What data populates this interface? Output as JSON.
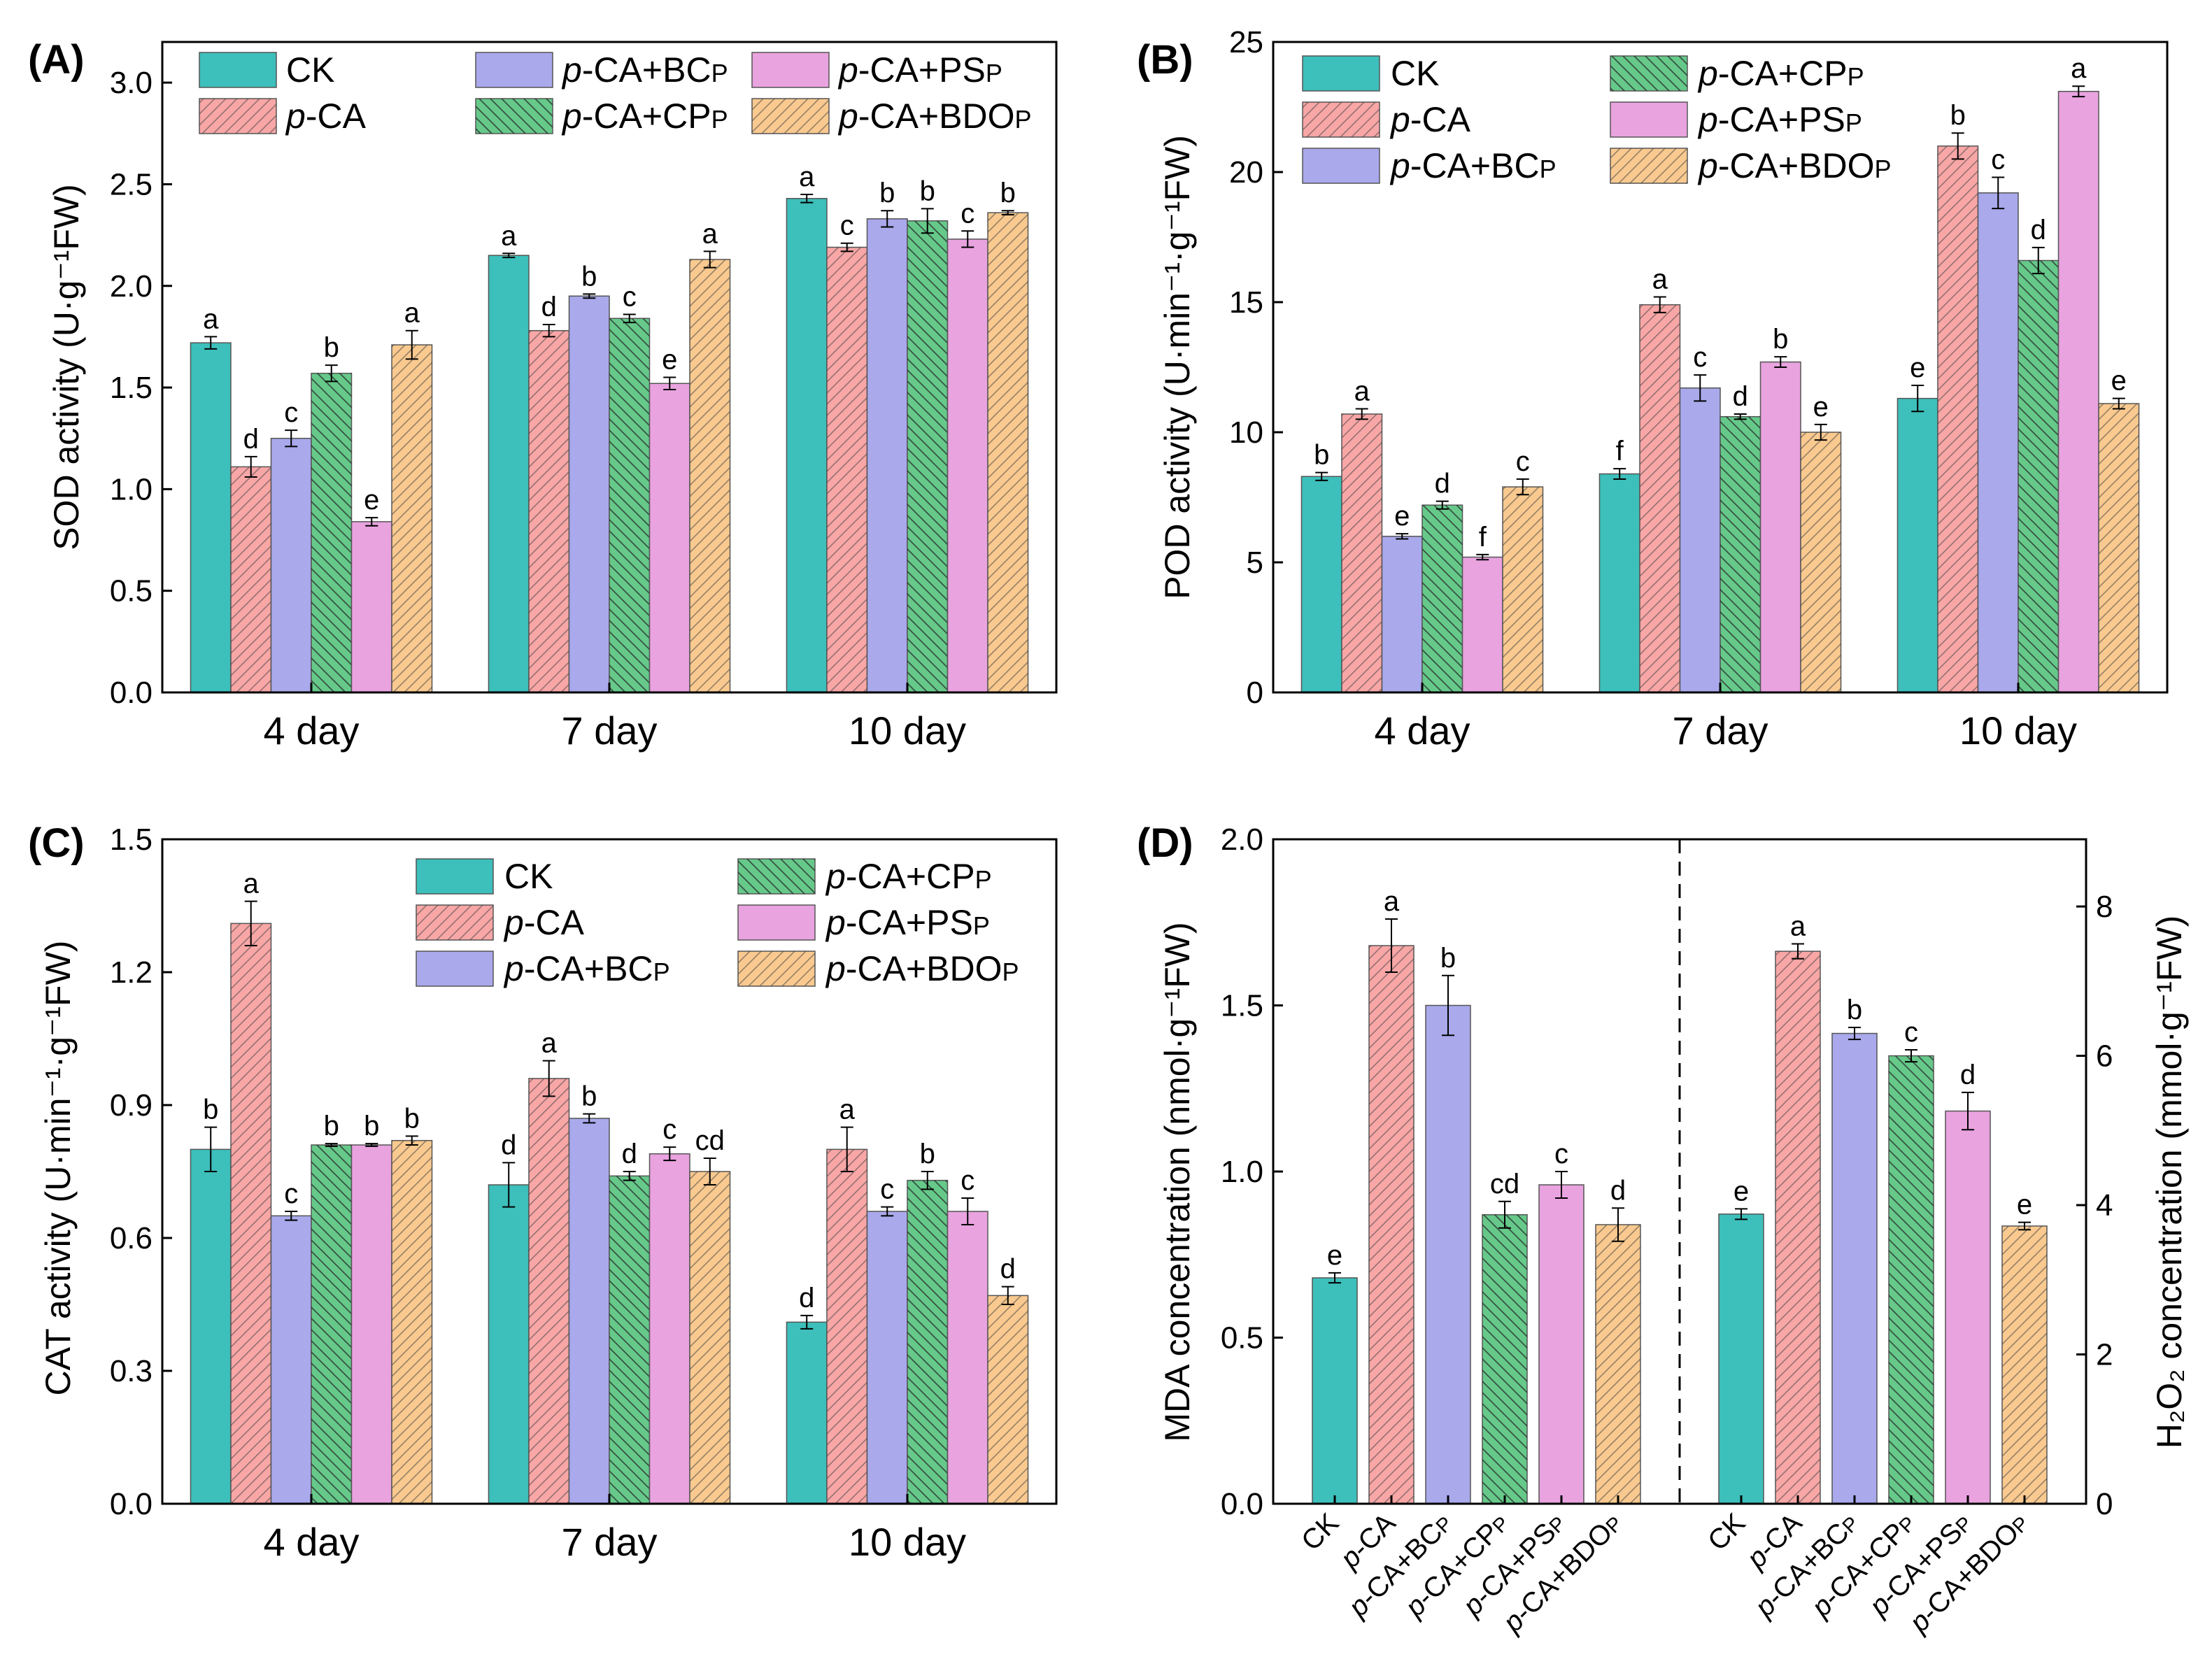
{
  "series": [
    {
      "key": "CK",
      "label": "CK",
      "color": "#3dbfbb",
      "hatch": "none"
    },
    {
      "key": "pCA",
      "label": "p-CA",
      "color": "#f8a6a6",
      "hatch": "fwd"
    },
    {
      "key": "BC",
      "label": "p-CA+BCP",
      "color": "#a9a9ec",
      "hatch": "none"
    },
    {
      "key": "CP",
      "label": "p-CA+CPP",
      "color": "#66c98a",
      "hatch": "back"
    },
    {
      "key": "PS",
      "label": "p-CA+PSP",
      "color": "#e9a3df",
      "hatch": "none"
    },
    {
      "key": "BDO",
      "label": "p-CA+BDOP",
      "color": "#f9c98f",
      "hatch": "fwd"
    }
  ],
  "chart_data": [
    {
      "id": "A",
      "type": "bar",
      "panel_label": "(A)",
      "ylabel": "SOD activity (U·g⁻¹FW)",
      "ylim": [
        0,
        3.2
      ],
      "yticks": [
        "0.0",
        "0.5",
        "1.0",
        "1.5",
        "2.0",
        "2.5",
        "3.0"
      ],
      "categories": [
        "4 day",
        "7 day",
        "10 day"
      ],
      "legend_position": "top",
      "values": {
        "CK": [
          1.72,
          2.15,
          2.43
        ],
        "pCA": [
          1.11,
          1.78,
          2.19
        ],
        "BC": [
          1.25,
          1.95,
          2.33
        ],
        "CP": [
          1.57,
          1.84,
          2.32
        ],
        "PS": [
          0.84,
          1.52,
          2.23
        ],
        "BDO": [
          1.71,
          2.13,
          2.36
        ]
      },
      "errors": {
        "CK": [
          0.03,
          0.01,
          0.02
        ],
        "pCA": [
          0.05,
          0.03,
          0.02
        ],
        "BC": [
          0.04,
          0.01,
          0.04
        ],
        "CP": [
          0.04,
          0.02,
          0.06
        ],
        "PS": [
          0.02,
          0.03,
          0.04
        ],
        "BDO": [
          0.07,
          0.04,
          0.01
        ]
      },
      "letters": {
        "CK": [
          "a",
          "a",
          "a"
        ],
        "pCA": [
          "d",
          "d",
          "c"
        ],
        "BC": [
          "c",
          "b",
          "b"
        ],
        "CP": [
          "b",
          "c",
          "b"
        ],
        "PS": [
          "e",
          "e",
          "c"
        ],
        "BDO": [
          "a",
          "a",
          "b"
        ]
      }
    },
    {
      "id": "B",
      "type": "bar",
      "panel_label": "(B)",
      "ylabel": "POD activity (U·min⁻¹·g⁻¹FW)",
      "ylim": [
        0,
        25
      ],
      "yticks": [
        "0",
        "5",
        "10",
        "15",
        "20",
        "25"
      ],
      "categories": [
        "4 day",
        "7 day",
        "10 day"
      ],
      "legend_position": "top",
      "values": {
        "CK": [
          8.3,
          8.4,
          11.3
        ],
        "pCA": [
          10.7,
          14.9,
          21.0
        ],
        "BC": [
          6.0,
          11.7,
          19.2
        ],
        "CP": [
          7.2,
          10.6,
          16.6
        ],
        "PS": [
          5.2,
          12.7,
          23.1
        ],
        "BDO": [
          7.9,
          10.0,
          11.1
        ]
      },
      "errors": {
        "CK": [
          0.15,
          0.2,
          0.5
        ],
        "pCA": [
          0.2,
          0.3,
          0.5
        ],
        "BC": [
          0.1,
          0.5,
          0.6
        ],
        "CP": [
          0.15,
          0.1,
          0.5
        ],
        "PS": [
          0.1,
          0.2,
          0.2
        ],
        "BDO": [
          0.3,
          0.3,
          0.2
        ]
      },
      "letters": {
        "CK": [
          "b",
          "f",
          "e"
        ],
        "pCA": [
          "a",
          "a",
          "b"
        ],
        "BC": [
          "e",
          "c",
          "c"
        ],
        "CP": [
          "d",
          "d",
          "d"
        ],
        "PS": [
          "f",
          "b",
          "a"
        ],
        "BDO": [
          "c",
          "e",
          "e"
        ]
      }
    },
    {
      "id": "C",
      "type": "bar",
      "panel_label": "(C)",
      "ylabel": "CAT activity (U·min⁻¹·g⁻¹FW)",
      "ylim": [
        0,
        1.5
      ],
      "yticks": [
        "0.0",
        "0.3",
        "0.6",
        "0.9",
        "1.2",
        "1.5"
      ],
      "categories": [
        "4 day",
        "7 day",
        "10 day"
      ],
      "legend_position": "top-right",
      "values": {
        "CK": [
          0.8,
          0.72,
          0.41
        ],
        "pCA": [
          1.31,
          0.96,
          0.8
        ],
        "BC": [
          0.65,
          0.87,
          0.66
        ],
        "CP": [
          0.81,
          0.74,
          0.73
        ],
        "PS": [
          0.81,
          0.79,
          0.66
        ],
        "BDO": [
          0.82,
          0.75,
          0.47
        ]
      },
      "errors": {
        "CK": [
          0.05,
          0.05,
          0.015
        ],
        "pCA": [
          0.05,
          0.04,
          0.05
        ],
        "BC": [
          0.01,
          0.01,
          0.01
        ],
        "CP": [
          0.003,
          0.01,
          0.02
        ],
        "PS": [
          0.003,
          0.015,
          0.03
        ],
        "BDO": [
          0.01,
          0.03,
          0.02
        ]
      },
      "letters": {
        "CK": [
          "b",
          "d",
          "d"
        ],
        "pCA": [
          "a",
          "a",
          "a"
        ],
        "BC": [
          "c",
          "b",
          "c"
        ],
        "CP": [
          "b",
          "d",
          "b"
        ],
        "PS": [
          "b",
          "c",
          "c"
        ],
        "BDO": [
          "b",
          "cd",
          "d"
        ]
      }
    },
    {
      "id": "D",
      "type": "bar",
      "panel_label": "(D)",
      "ylabel": "MDA concentration (nmol·g⁻¹FW)",
      "ylabel_right": "H₂O₂ concentration (mmol·g⁻¹FW)",
      "ylim": [
        0,
        2.0
      ],
      "yticks": [
        "0.0",
        "0.5",
        "1.0",
        "1.5",
        "2.0"
      ],
      "ylim_right": [
        0,
        8.9
      ],
      "yticks_right": [
        "0",
        "2",
        "4",
        "6",
        "8"
      ],
      "categories": [
        "CK",
        "p-CA",
        "p-CA+BCP",
        "p-CA+CPP",
        "p-CA+PSP",
        "p-CA+BDOP"
      ],
      "groups": [
        {
          "name": "MDA",
          "axis": "left",
          "values": [
            0.68,
            1.68,
            1.5,
            0.87,
            0.96,
            0.84
          ],
          "errors": [
            0.015,
            0.08,
            0.09,
            0.04,
            0.04,
            0.05
          ],
          "letters": [
            "e",
            "a",
            "b",
            "cd",
            "c",
            "d"
          ]
        },
        {
          "name": "H2O2",
          "axis": "right",
          "values": [
            3.88,
            7.4,
            6.3,
            6.0,
            5.26,
            3.72
          ],
          "errors": [
            0.07,
            0.1,
            0.08,
            0.08,
            0.25,
            0.05
          ],
          "letters": [
            "e",
            "a",
            "b",
            "c",
            "d",
            "e"
          ]
        }
      ]
    }
  ]
}
